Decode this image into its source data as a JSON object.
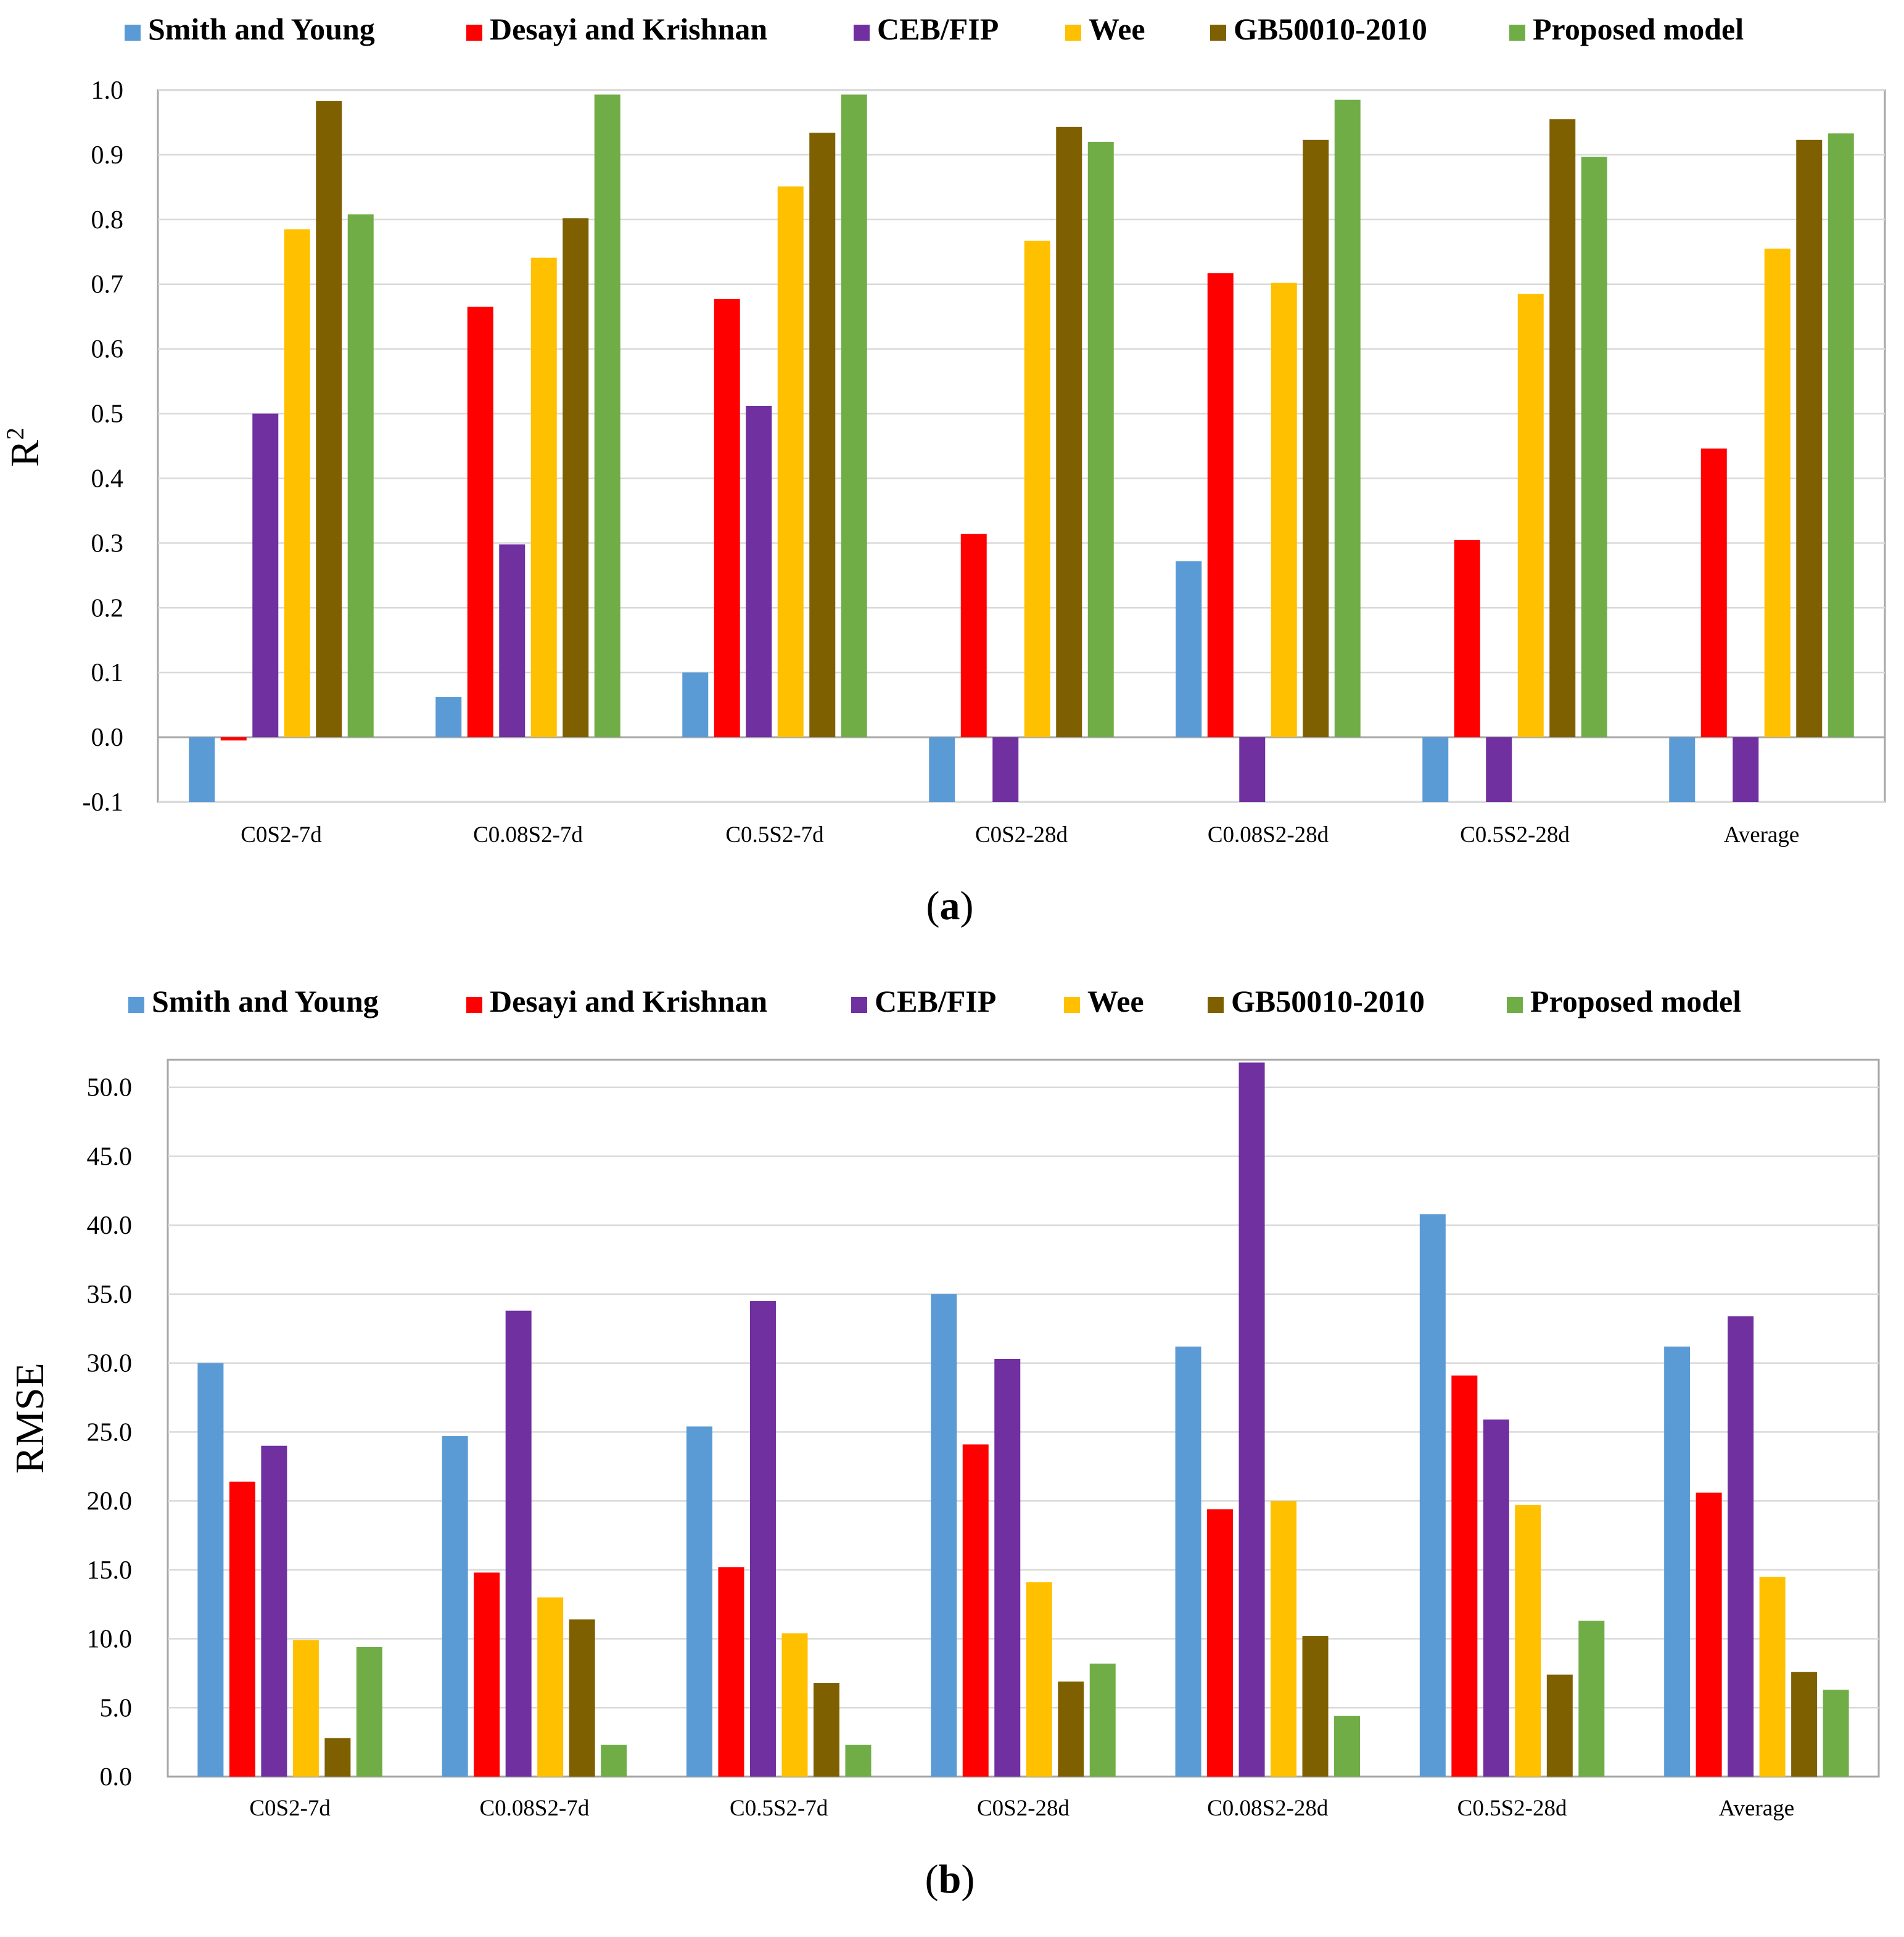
{
  "chart_data": [
    {
      "type": "bar",
      "panel_label": "(a)",
      "ylabel": "R",
      "ylabel_superscript": "2",
      "ylim": [
        -0.1,
        1.0
      ],
      "yticks": [
        "-0.1",
        "0.0",
        "0.1",
        "0.2",
        "0.3",
        "0.4",
        "0.5",
        "0.6",
        "0.7",
        "0.8",
        "0.9",
        "1.0"
      ],
      "grid": true,
      "legend_position": "top",
      "categories": [
        "C0S2-7d",
        "C0.08S2-7d",
        "C0.5S2-7d",
        "C0S2-28d",
        "C0.08S2-28d",
        "C0.5S2-28d",
        "Average"
      ],
      "series": [
        {
          "name": "Smith and Young",
          "color": "#5B9BD5",
          "values": [
            -0.1,
            0.062,
            0.1,
            -0.1,
            0.272,
            -0.1,
            -0.1
          ]
        },
        {
          "name": "Desayi and Krishnan",
          "color": "#FF0000",
          "values": [
            -0.005,
            0.665,
            0.677,
            0.314,
            0.717,
            0.305,
            0.446
          ]
        },
        {
          "name": "CEB/FIP",
          "color": "#7030A0",
          "values": [
            0.5,
            0.298,
            0.512,
            -0.1,
            -0.1,
            -0.1,
            -0.1
          ]
        },
        {
          "name": "Wee",
          "color": "#FFC000",
          "values": [
            0.785,
            0.741,
            0.851,
            0.767,
            0.702,
            0.685,
            0.755
          ]
        },
        {
          "name": "GB50010-2010",
          "color": "#7F6000",
          "values": [
            0.983,
            0.802,
            0.934,
            0.943,
            0.923,
            0.955,
            0.923
          ]
        },
        {
          "name": "Proposed model",
          "color": "#70AD47",
          "values": [
            0.808,
            0.993,
            0.993,
            0.92,
            0.985,
            0.897,
            0.933
          ]
        }
      ]
    },
    {
      "type": "bar",
      "panel_label": "(b)",
      "ylabel": "RMSE",
      "ylim": [
        0,
        52
      ],
      "yticks": [
        "0.0",
        "5.0",
        "10.0",
        "15.0",
        "20.0",
        "25.0",
        "30.0",
        "35.0",
        "40.0",
        "45.0",
        "50.0"
      ],
      "grid": true,
      "legend_position": "top",
      "categories": [
        "C0S2-7d",
        "C0.08S2-7d",
        "C0.5S2-7d",
        "C0S2-28d",
        "C0.08S2-28d",
        "C0.5S2-28d",
        "Average"
      ],
      "series": [
        {
          "name": "Smith and Young",
          "color": "#5B9BD5",
          "values": [
            30.0,
            24.7,
            25.4,
            35.0,
            31.2,
            40.8,
            31.2
          ]
        },
        {
          "name": "Desayi and Krishnan",
          "color": "#FF0000",
          "values": [
            21.4,
            14.8,
            15.2,
            24.1,
            19.4,
            29.1,
            20.6
          ]
        },
        {
          "name": "CEB/FIP",
          "color": "#7030A0",
          "values": [
            24.0,
            33.8,
            34.5,
            30.3,
            51.8,
            25.9,
            33.4
          ]
        },
        {
          "name": "Wee",
          "color": "#FFC000",
          "values": [
            9.9,
            13.0,
            10.4,
            14.1,
            20.0,
            19.7,
            14.5
          ]
        },
        {
          "name": "GB50010-2010",
          "color": "#7F6000",
          "values": [
            2.8,
            11.4,
            6.8,
            6.9,
            10.2,
            7.4,
            7.6
          ]
        },
        {
          "name": "Proposed model",
          "color": "#70AD47",
          "values": [
            9.4,
            2.3,
            2.3,
            8.2,
            4.4,
            11.3,
            6.3
          ]
        }
      ]
    }
  ]
}
